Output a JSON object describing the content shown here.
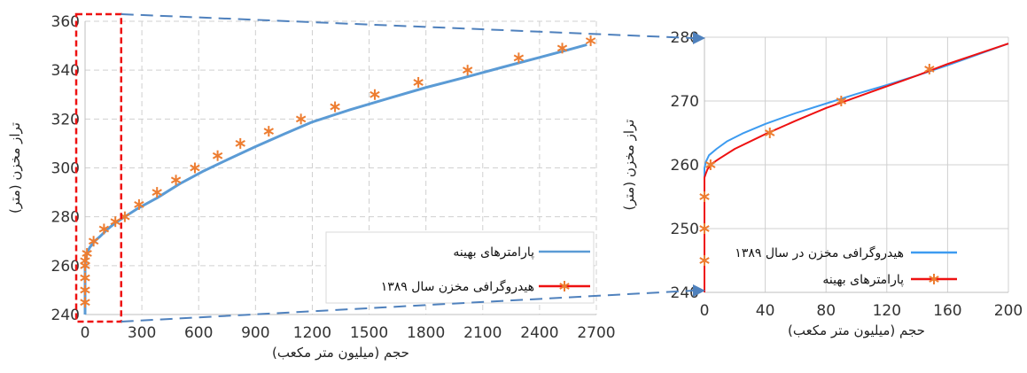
{
  "colors": {
    "blue": "#5b9bd5",
    "blue_zoom": "#3d9bf0",
    "red": "#ee1111",
    "orange": "#ed7d31",
    "grid": "#d0d0d0",
    "dash_red": "#ee1111",
    "connector": "#4f81bd"
  },
  "chart_data": [
    {
      "type": "line",
      "xlabel": "حجم (میلیون متر مکعب)",
      "ylabel": "تراز مخزن (متر)",
      "xlim": [
        0,
        2700
      ],
      "ylim": [
        240,
        360
      ],
      "x_ticks": [
        0,
        300,
        600,
        900,
        1200,
        1500,
        1800,
        2100,
        2400,
        2700
      ],
      "y_ticks": [
        240,
        260,
        280,
        300,
        320,
        340,
        360
      ],
      "grid": true,
      "legend_position": "bottom-right",
      "series": [
        {
          "name": "پارامترهای بهینه",
          "color": "#5b9bd5",
          "style": "line",
          "x": [
            0,
            0,
            2,
            10,
            25,
            50,
            80,
            120,
            160,
            200,
            280,
            380,
            500,
            620,
            750,
            900,
            1050,
            1200,
            1400,
            1600,
            1800,
            2000,
            2200,
            2400,
            2550,
            2650
          ],
          "y": [
            240,
            259.5,
            262,
            265,
            267.5,
            270,
            272,
            275,
            277.5,
            279.5,
            283.5,
            287.7,
            293.5,
            298.5,
            303.3,
            308.7,
            313.8,
            318.8,
            323.8,
            328.4,
            332.9,
            336.9,
            341.1,
            345.2,
            348.3,
            350.4
          ]
        },
        {
          "name": "هیدروگرافی مخزن سال ۱۳۸۹",
          "color": "#ed7d31",
          "style": "markers",
          "marker": "asterisk",
          "x": [
            0,
            0,
            0,
            0,
            0,
            10,
            45,
            100,
            160,
            210,
            285,
            380,
            480,
            580,
            700,
            820,
            970,
            1140,
            1320,
            1530,
            1760,
            2020,
            2290,
            2520,
            2670
          ],
          "y": [
            245,
            250,
            255,
            260,
            262,
            265,
            270,
            275,
            278,
            280,
            285,
            290,
            295,
            300,
            305,
            310,
            315,
            320,
            325,
            330,
            335,
            340,
            345,
            349,
            352
          ]
        }
      ],
      "legend": [
        {
          "label": "پارامترهای بهینه",
          "color": "#5b9bd5",
          "marker": false
        },
        {
          "label": "هیدروگرافی مخزن سال ۱۳۸۹",
          "color": "#ee1111",
          "marker": true
        }
      ],
      "zoom_region": {
        "x": [
          0,
          200
        ],
        "y": [
          240,
          280
        ]
      }
    },
    {
      "type": "line",
      "xlabel": "حجم (میلیون متر مکعب)",
      "ylabel": "تراز مخزن (متر)",
      "xlim": [
        0,
        200
      ],
      "ylim": [
        240,
        280
      ],
      "x_ticks": [
        0,
        40,
        80,
        120,
        160,
        200
      ],
      "y_ticks": [
        240,
        250,
        260,
        270,
        280
      ],
      "grid": true,
      "legend_position": "bottom-right",
      "series": [
        {
          "name": "هیدروگرافی مخزن در سال ۱۳۸۹",
          "color": "#3d9bf0",
          "style": "line",
          "x": [
            0,
            0,
            1,
            3,
            8,
            15,
            25,
            40,
            60,
            80,
            100,
            120,
            140,
            160,
            180,
            200
          ],
          "y": [
            240,
            259.5,
            260.5,
            261.5,
            262.5,
            263.7,
            264.9,
            266.4,
            268.1,
            269.6,
            271.1,
            272.5,
            274.0,
            275.6,
            277.3,
            279
          ]
        },
        {
          "name": "پارامترهای بهینه",
          "color": "#ee1111",
          "style": "line",
          "x": [
            0,
            0,
            1,
            2,
            5,
            10,
            20,
            40,
            60,
            80,
            100,
            120,
            140,
            160,
            180,
            200
          ],
          "y": [
            240,
            258,
            258.7,
            259.3,
            260.2,
            261.0,
            262.5,
            264.8,
            266.9,
            268.9,
            270.6,
            272.3,
            274.0,
            275.8,
            277.4,
            279
          ]
        },
        {
          "name": "پارامترهای بهینه",
          "color": "#ed7d31",
          "style": "markers",
          "marker": "asterisk",
          "x": [
            0,
            0,
            0,
            4,
            43,
            90,
            148
          ],
          "y": [
            245,
            250,
            255,
            260,
            265,
            270,
            275
          ]
        }
      ],
      "legend": [
        {
          "label": "هیدروگرافی مخزن در سال ۱۳۸۹",
          "color": "#3d9bf0",
          "marker": false
        },
        {
          "label": "پارامترهای بهینه",
          "color": "#ee1111",
          "marker": true
        }
      ]
    }
  ]
}
